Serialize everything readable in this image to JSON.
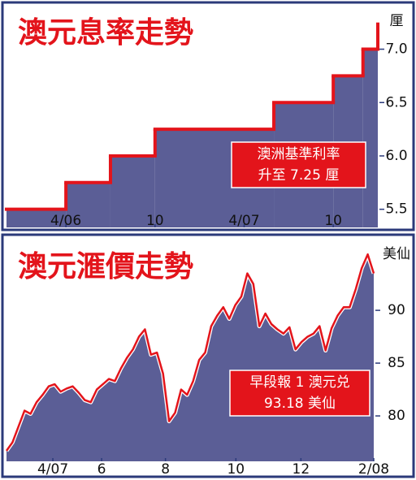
{
  "chart_data": [
    {
      "type": "step",
      "title": "澳元息率走勢",
      "y_label": "厘",
      "annotation": [
        "澳洲基準利率",
        "升至 7.25 厘"
      ],
      "x": [
        "12/05",
        "4/06",
        "7/06",
        "10/06",
        "6/07",
        "10/07",
        "12/07",
        "1/08"
      ],
      "values": [
        5.5,
        5.75,
        6.0,
        6.25,
        6.5,
        6.75,
        7.0,
        7.25
      ],
      "xlim": [
        "12/05",
        "1/08"
      ],
      "xticks": [
        "4/06",
        {
          "value": "10/06",
          "label": "10"
        },
        "4/07",
        {
          "value": "10/07",
          "label": "10"
        }
      ],
      "ylim": [
        5.33,
        7.4
      ],
      "yticks": [
        5.5,
        {
          "value": 6,
          "label": "6.0"
        },
        6.5,
        {
          "value": 7,
          "label": "7.0"
        }
      ],
      "color": "#e3141b",
      "fill": "#5b5e96"
    },
    {
      "type": "line",
      "title": "澳元滙價走勢",
      "y_label": "美仙",
      "annotation": [
        "早段報 1 澳元兑",
        "93.18 美仙"
      ],
      "values": [
        76.7,
        77.5,
        79,
        80.5,
        80.2,
        81.3,
        82,
        82.8,
        83,
        82.3,
        82.6,
        82.8,
        82.2,
        81.5,
        81.3,
        82.5,
        83,
        83.5,
        83.3,
        84.5,
        85.5,
        86.3,
        87.5,
        88.2,
        85.8,
        86,
        84,
        79.5,
        80.3,
        82.5,
        82,
        83.3,
        85.3,
        86,
        88.5,
        89.5,
        90.3,
        89.2,
        90.5,
        91.3,
        93.5,
        92.5,
        88.5,
        89.7,
        88.7,
        88.2,
        87.8,
        88.4,
        86.3,
        87,
        87.5,
        87.8,
        88.5,
        86.2,
        88.3,
        89.5,
        90.3,
        90.3,
        92,
        94,
        95.3,
        93.5
      ],
      "xlim": [
        0,
        61
      ],
      "xticks": [
        {
          "value": 7.7,
          "label": "4/07"
        },
        {
          "value": 15.8,
          "label": "6"
        },
        {
          "value": 26.4,
          "label": "8"
        },
        {
          "value": 38.1,
          "label": "10"
        },
        {
          "value": 48.9,
          "label": "12"
        },
        {
          "value": 61,
          "label": "2/08"
        }
      ],
      "ylim": [
        75.7,
        96.7
      ],
      "yticks": [
        80,
        85,
        90
      ],
      "color": "#e3141b",
      "fill": "#5b5e96"
    }
  ]
}
